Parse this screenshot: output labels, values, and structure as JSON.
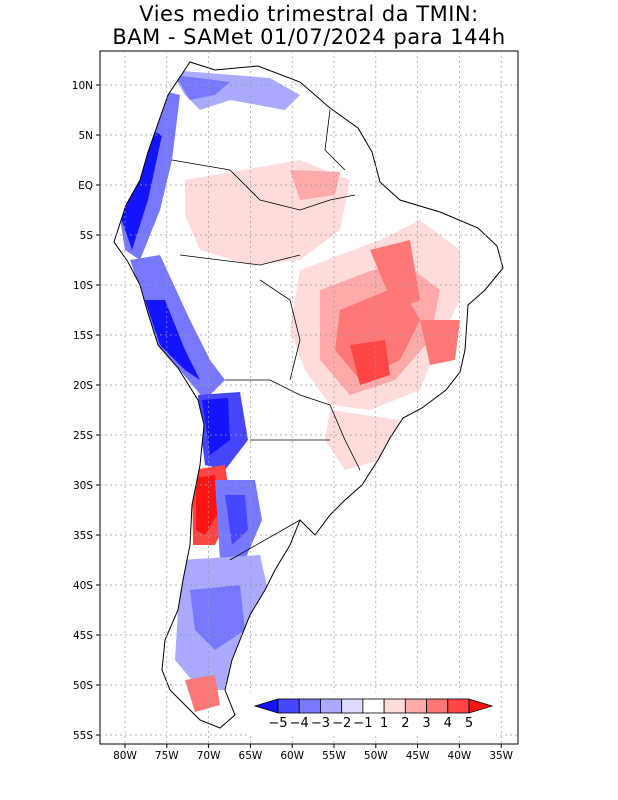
{
  "title": {
    "line1": "Vies medio trimestral da TMIN:",
    "line2": "BAM - SAMet 01/07/2024  para 144h"
  },
  "lat_labels": [
    "10N",
    "5N",
    "EQ",
    "5S",
    "10S",
    "15S",
    "20S",
    "25S",
    "30S",
    "35S",
    "40S",
    "45S",
    "50S",
    "55S"
  ],
  "lon_labels": [
    "80W",
    "75W",
    "70W",
    "65W",
    "60W",
    "55W",
    "50W",
    "45W",
    "40W",
    "35W"
  ],
  "colorbar": {
    "labels": [
      "-5",
      "-4",
      "-3",
      "-2",
      "-1",
      "1",
      "2",
      "3",
      "4",
      "5"
    ],
    "colors": [
      "#1414ff",
      "#4646ff",
      "#7878ff",
      "#aaaaff",
      "#dcdcff",
      "#ffffff",
      "#ffdcdc",
      "#ffaaaa",
      "#ff7878",
      "#ff4646",
      "#ff1414"
    ]
  },
  "colors": {
    "land_outline": "#000000",
    "grid": "#9a9a9a"
  }
}
